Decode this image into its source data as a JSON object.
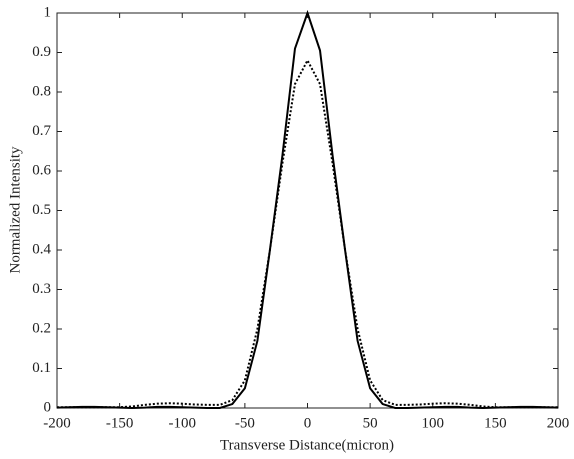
{
  "chart_data": {
    "type": "line",
    "x_label": "Transverse Distance(micron)",
    "y_label": "Normalized Intensity",
    "x": [
      -200,
      -190,
      -180,
      -170,
      -160,
      -150,
      -140,
      -130,
      -120,
      -110,
      -100,
      -90,
      -80,
      -70,
      -60,
      -50,
      -40,
      -30,
      -20,
      -10,
      0,
      10,
      20,
      30,
      40,
      50,
      60,
      70,
      80,
      90,
      100,
      110,
      120,
      130,
      140,
      150,
      160,
      170,
      180,
      190,
      200
    ],
    "series": [
      {
        "color": "#000000",
        "style": "solid",
        "values": [
          0.001,
          0.002,
          0.003,
          0.003,
          0.002,
          0.001,
          0,
          0.001,
          0.003,
          0.003,
          0.002,
          0.001,
          0,
          0,
          0.01,
          0.05,
          0.17,
          0.4,
          0.64,
          0.91,
          1,
          0.905,
          0.64,
          0.4,
          0.17,
          0.05,
          0.01,
          0,
          0,
          0.001,
          0.002,
          0.003,
          0.003,
          0.001,
          0,
          0.001,
          0.002,
          0.003,
          0.003,
          0.002,
          0.001
        ]
      },
      {
        "color": "#000000",
        "style": "dotted",
        "values": [
          0.002,
          0.002,
          0.002,
          0.002,
          0.002,
          0.002,
          0.004,
          0.008,
          0.011,
          0.012,
          0.011,
          0.009,
          0.008,
          0.008,
          0.02,
          0.07,
          0.2,
          0.4,
          0.62,
          0.82,
          0.88,
          0.82,
          0.62,
          0.4,
          0.2,
          0.07,
          0.02,
          0.008,
          0.008,
          0.009,
          0.011,
          0.012,
          0.011,
          0.008,
          0.004,
          0.002,
          0.002,
          0.002,
          0.002,
          0.002,
          0.002
        ]
      }
    ],
    "xlim": [
      -200,
      200
    ],
    "xticks": [
      -200,
      -150,
      -100,
      -50,
      0,
      50,
      100,
      150,
      200
    ],
    "ylim": [
      0,
      1
    ],
    "yticks": [
      0,
      0.1,
      0.2,
      0.3,
      0.4,
      0.5,
      0.6,
      0.7,
      0.8,
      0.9,
      1
    ]
  }
}
